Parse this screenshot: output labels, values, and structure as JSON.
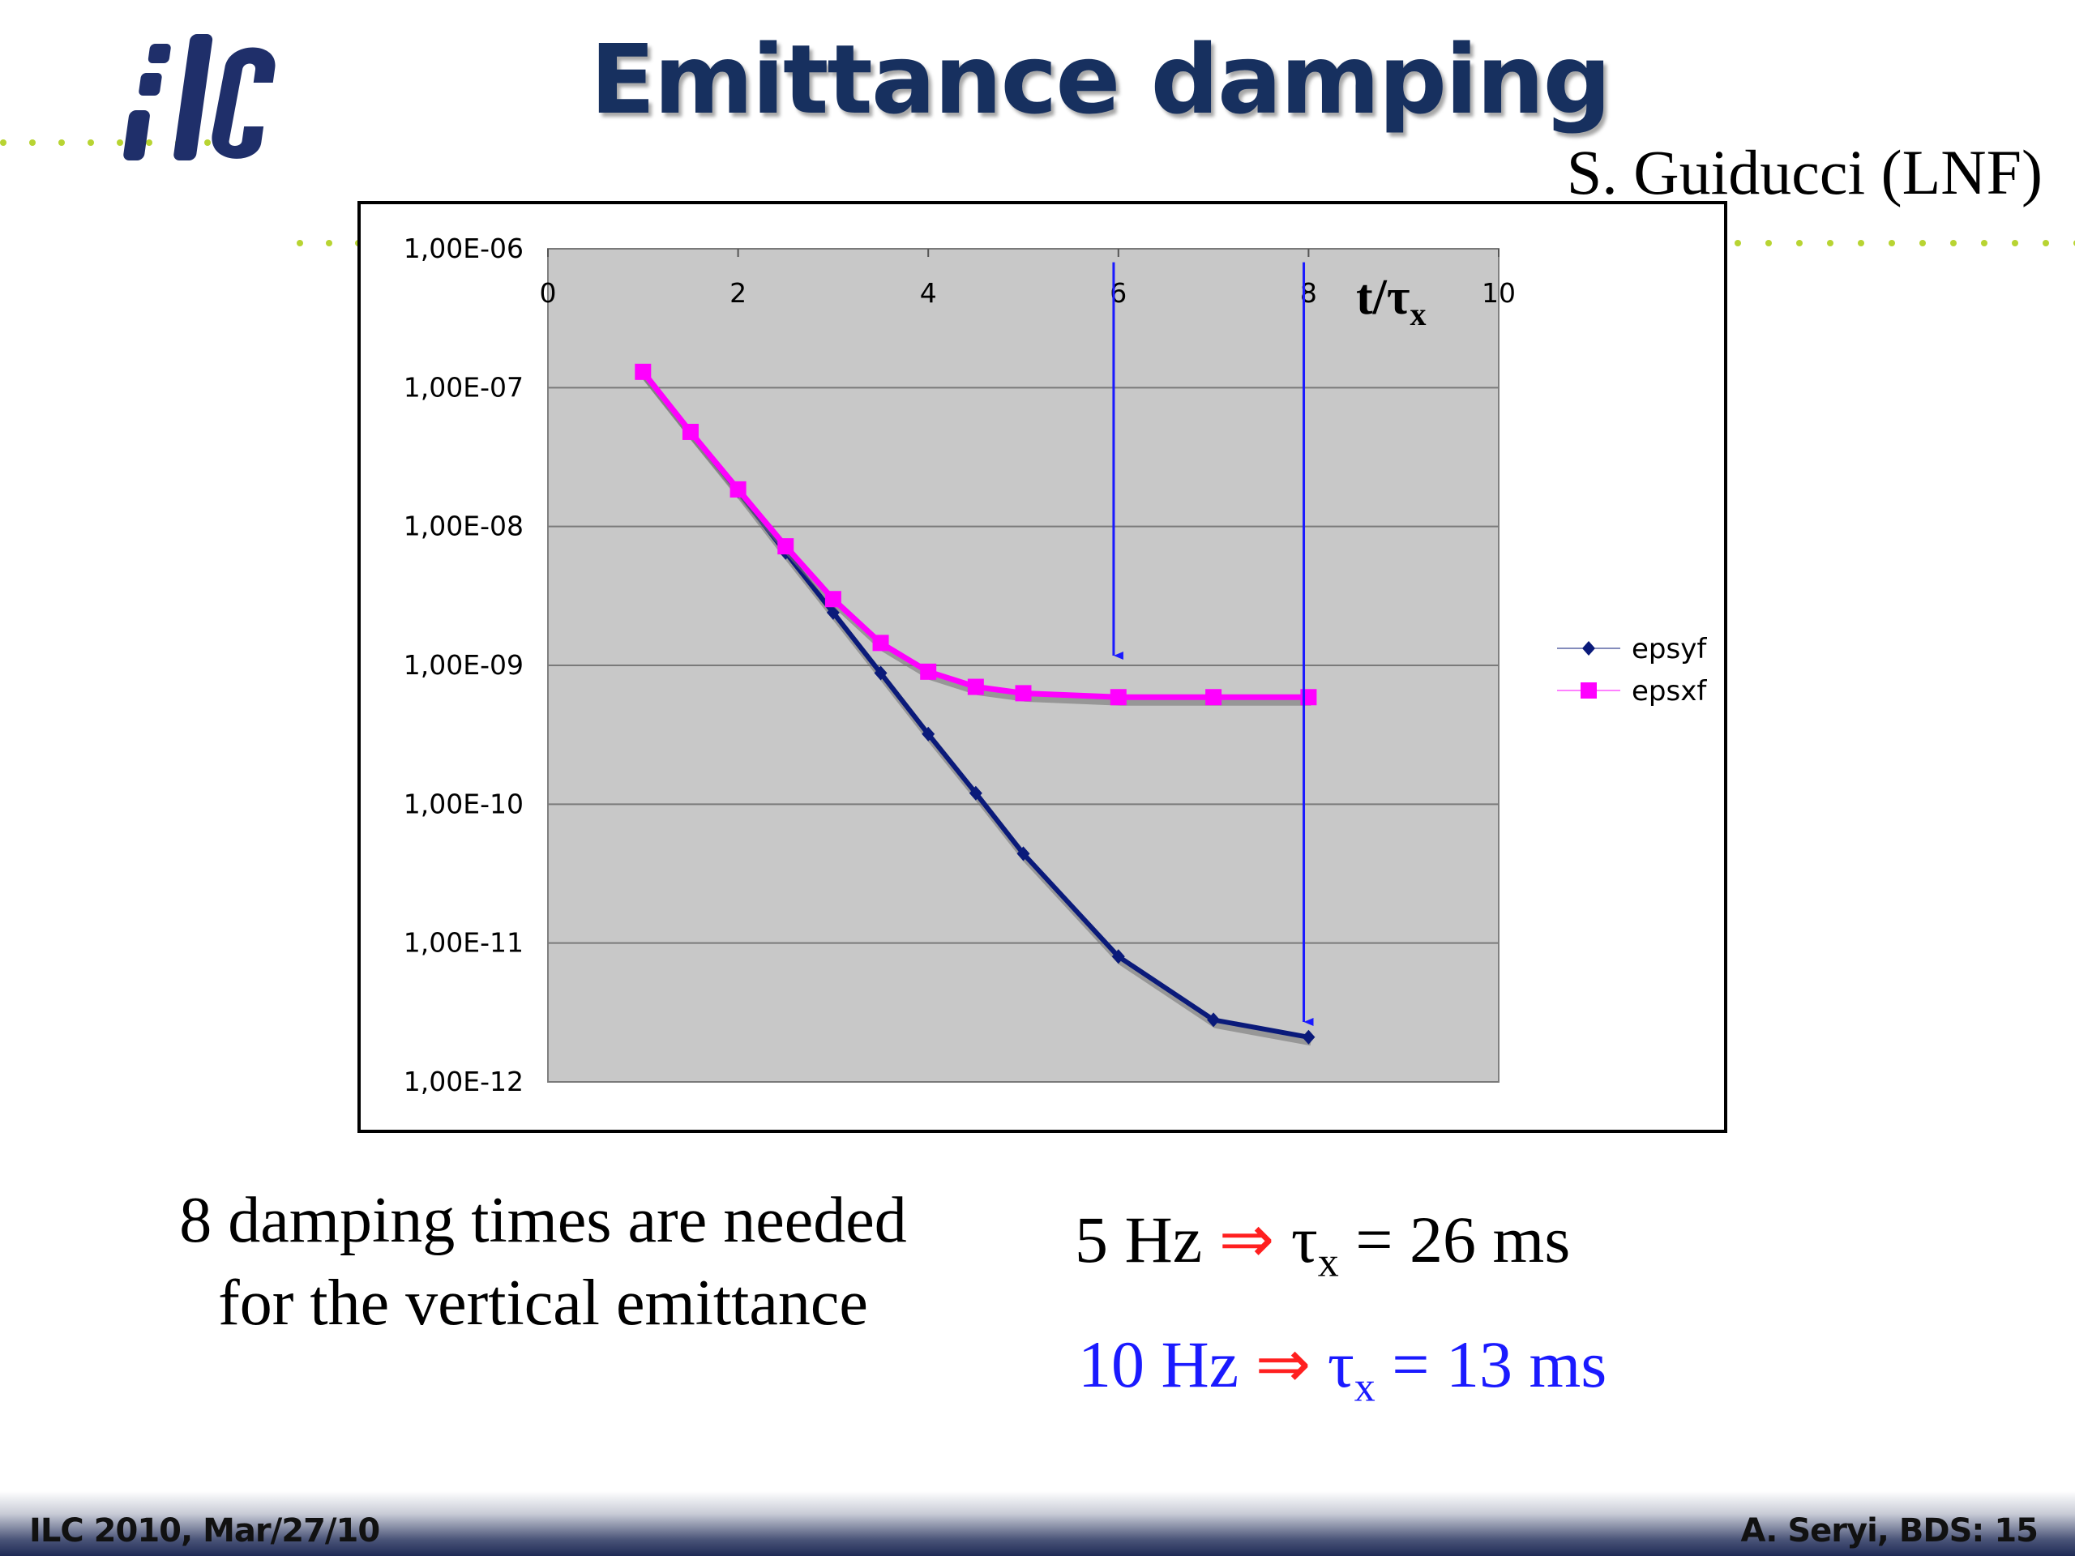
{
  "slide": {
    "title": "Emittance damping",
    "author": "S. Guiducci (LNF)",
    "logo_text": "ilc"
  },
  "caption": "8 damping times are needed for the vertical emittance",
  "formulas": [
    {
      "freq": "5 Hz",
      "arrow": "⇒",
      "tau": "τ",
      "sub": "x",
      "rhs": " = 26 ms",
      "color": "#000000"
    },
    {
      "freq": "10 Hz",
      "arrow": "⇒",
      "tau": "τ",
      "sub": "x",
      "rhs": " = 13 ms",
      "color": "#1a1aff"
    }
  ],
  "footer": {
    "left": "ILC 2010, Mar/27/10",
    "right": "A. Seryi, BDS: 15"
  },
  "chart_data": {
    "type": "line",
    "title": "",
    "xlabel": "t/τ",
    "xlabel_sub": "x",
    "ylabel": "",
    "x_axis_position": "top",
    "xlim": [
      0,
      10
    ],
    "ylim": [
      1e-12,
      1e-06
    ],
    "yscale": "log",
    "x_ticks": [
      0,
      2,
      4,
      6,
      8,
      10
    ],
    "y_ticks": [
      1e-06,
      1e-07,
      1e-08,
      1e-09,
      1e-10,
      1e-11,
      1e-12
    ],
    "y_tick_labels": [
      "1,00E-06",
      "1,00E-07",
      "1,00E-08",
      "1,00E-09",
      "1,00E-10",
      "1,00E-11",
      "1,00E-12"
    ],
    "grid": true,
    "legend_position": "right",
    "series": [
      {
        "name": "epsyf",
        "color": "#0a1a7a",
        "marker": "diamond",
        "x": [
          1,
          1.5,
          2,
          2.5,
          3,
          3.5,
          4,
          4.5,
          5,
          6,
          7,
          8
        ],
        "y": [
          1.3e-07,
          4.8e-08,
          1.8e-08,
          6.5e-09,
          2.4e-09,
          8.8e-10,
          3.2e-10,
          1.2e-10,
          4.4e-11,
          8e-12,
          2.8e-12,
          2.1e-12
        ]
      },
      {
        "name": "epsxf",
        "color": "#ff00ff",
        "marker": "square",
        "x": [
          1,
          1.5,
          2,
          2.5,
          3,
          3.5,
          4,
          4.5,
          5,
          6,
          7,
          8
        ],
        "y": [
          1.3e-07,
          4.8e-08,
          1.85e-08,
          7.2e-09,
          3e-09,
          1.45e-09,
          9e-10,
          7e-10,
          6.3e-10,
          5.9e-10,
          5.9e-10,
          5.9e-10
        ]
      }
    ],
    "annotations": [
      {
        "type": "arrow",
        "color": "#1a1aff",
        "x": 5.95,
        "from_y": 8e-07,
        "to_y": 1e-09
      },
      {
        "type": "arrow",
        "color": "#1a1aff",
        "x": 7.95,
        "from_y": 8e-07,
        "to_y": 2.3e-12
      }
    ]
  }
}
